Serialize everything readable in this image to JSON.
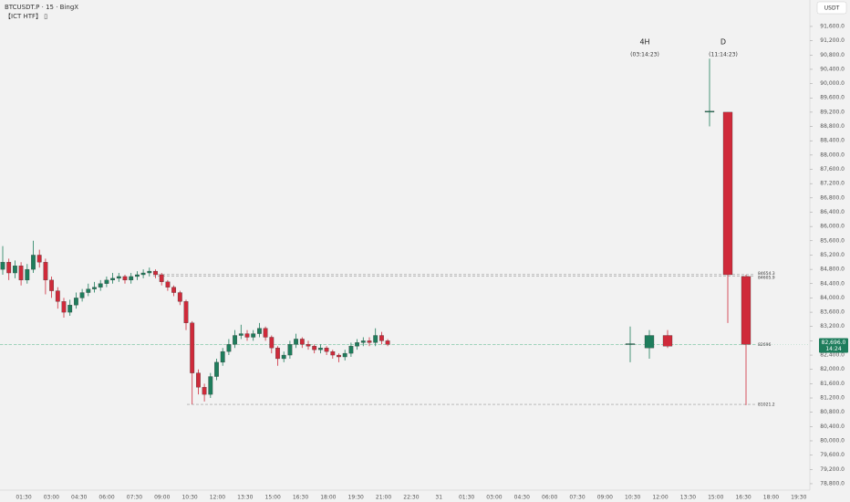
{
  "chart_data": {
    "type": "candlestick",
    "title": "BTCUSDT.P · 15 · BingX",
    "subtitle": "【ICT HTF】 ▯",
    "unit": "USDT",
    "ylim": [
      78620,
      92340
    ],
    "yticks": [
      {
        "value": 78800,
        "label": "78,800.0"
      },
      {
        "value": 79200,
        "label": "79,200.0"
      },
      {
        "value": 79600,
        "label": "79,600.0"
      },
      {
        "value": 80000,
        "label": "80,000.0"
      },
      {
        "value": 80400,
        "label": "80,400.0"
      },
      {
        "value": 80800,
        "label": "80,800.0"
      },
      {
        "value": 81200,
        "label": "81,200.0"
      },
      {
        "value": 81600,
        "label": "81,600.0"
      },
      {
        "value": 82000,
        "label": "82,000.0"
      },
      {
        "value": 82400,
        "label": "82,400.0"
      },
      {
        "value": 82800,
        "label": "82,800.0"
      },
      {
        "value": 83200,
        "label": "83,200.0"
      },
      {
        "value": 83600,
        "label": "83,600.0"
      },
      {
        "value": 84000,
        "label": "84,000.0"
      },
      {
        "value": 84400,
        "label": "84,400.0"
      },
      {
        "value": 84800,
        "label": "84,800.0"
      },
      {
        "value": 85200,
        "label": "85,200.0"
      },
      {
        "value": 85600,
        "label": "85,600.0"
      },
      {
        "value": 86000,
        "label": "86,000.0"
      },
      {
        "value": 86400,
        "label": "86,400.0"
      },
      {
        "value": 86800,
        "label": "86,800.0"
      },
      {
        "value": 87200,
        "label": "87,200.0"
      },
      {
        "value": 87600,
        "label": "87,600.0"
      },
      {
        "value": 88000,
        "label": "88,000.0"
      },
      {
        "value": 88400,
        "label": "88,400.0"
      },
      {
        "value": 88800,
        "label": "88,800.0"
      },
      {
        "value": 89200,
        "label": "89,200.0"
      },
      {
        "value": 89600,
        "label": "89,600.0"
      },
      {
        "value": 90000,
        "label": "90,000.0"
      },
      {
        "value": 90400,
        "label": "90,400.0"
      },
      {
        "value": 90800,
        "label": "90,800.0"
      },
      {
        "value": 91200,
        "label": "91,200.0"
      },
      {
        "value": 91600,
        "label": "91,600.0"
      }
    ],
    "categories": [
      "01:30",
      "03:00",
      "04:30",
      "06:00",
      "07:30",
      "09:00",
      "10:30",
      "12:00",
      "13:30",
      "15:00",
      "16:30",
      "18:00",
      "19:30",
      "21:00",
      "22:30",
      "31",
      "01:30",
      "03:00",
      "04:30",
      "06:00",
      "07:30",
      "09:00",
      "10:30",
      "12:00",
      "13:30",
      "15:00",
      "16:30",
      "18:00",
      "19:30"
    ],
    "up_color": "#1e7d5c",
    "down_color": "#cf2a3a",
    "candles": {
      "open": [
        84800,
        85000,
        84700,
        84900,
        84500,
        84800,
        85200,
        85000,
        84500,
        84200,
        83900,
        83600,
        83800,
        84000,
        84150,
        84250,
        84300,
        84400,
        84500,
        84550,
        84600,
        84500,
        84600,
        84650,
        84700,
        84750,
        84650,
        84450,
        84300,
        84150,
        83900,
        83300,
        81900,
        81500,
        81300,
        81800,
        82200,
        82500,
        82700,
        82950,
        83000,
        82900,
        83000,
        83150,
        82900,
        82600,
        82300,
        82400,
        82700,
        82850,
        82700,
        82650,
        82550,
        82600,
        82500,
        82400,
        82350,
        82450,
        82650,
        82750,
        82800,
        82750,
        82950,
        82800
      ],
      "high": [
        85450,
        85100,
        85050,
        85000,
        84950,
        85600,
        85350,
        85100,
        84600,
        84300,
        84000,
        83950,
        84150,
        84250,
        84400,
        84450,
        84500,
        84600,
        84700,
        84700,
        84650,
        84700,
        84750,
        84800,
        84850,
        84800,
        84700,
        84500,
        84350,
        84200,
        83950,
        83350,
        82000,
        81600,
        81900,
        82300,
        82600,
        82850,
        83100,
        83250,
        83100,
        83100,
        83300,
        83200,
        82950,
        82650,
        82500,
        82800,
        83000,
        82900,
        82800,
        82700,
        82700,
        82650,
        82550,
        82450,
        82550,
        82750,
        82850,
        82900,
        82900,
        83150,
        83050,
        82850
      ],
      "low": [
        84650,
        84500,
        84550,
        84350,
        84400,
        84700,
        84850,
        84100,
        84000,
        83700,
        83450,
        83500,
        83700,
        83900,
        84050,
        84150,
        84200,
        84300,
        84400,
        84450,
        84400,
        84400,
        84500,
        84550,
        84600,
        84550,
        84350,
        84200,
        84050,
        83800,
        83100,
        81021.2,
        81300,
        81100,
        81200,
        81700,
        82100,
        82400,
        82600,
        82850,
        82800,
        82800,
        82900,
        82800,
        82450,
        82100,
        82200,
        82300,
        82600,
        82600,
        82550,
        82450,
        82450,
        82400,
        82300,
        82200,
        82250,
        82350,
        82550,
        82650,
        82650,
        82650,
        82700,
        82650
      ],
      "close": [
        85000,
        84700,
        84900,
        84500,
        84800,
        85200,
        85000,
        84500,
        84200,
        83900,
        83600,
        83800,
        84000,
        84150,
        84250,
        84300,
        84400,
        84500,
        84550,
        84600,
        84500,
        84600,
        84650,
        84700,
        84750,
        84650,
        84450,
        84300,
        84150,
        83900,
        83300,
        81900,
        81500,
        81300,
        81800,
        82200,
        82500,
        82700,
        82950,
        83000,
        82900,
        83000,
        83150,
        82900,
        82600,
        82300,
        82400,
        82700,
        82850,
        82700,
        82650,
        82550,
        82600,
        82500,
        82400,
        82350,
        82450,
        82650,
        82750,
        82800,
        82750,
        82950,
        82800,
        82700
      ]
    },
    "htf": [
      {
        "label": "4H",
        "countdown": "(03:14:23)",
        "candles": {
          "open": [
            82700,
            82600,
            82950
          ],
          "high": [
            83200,
            83100,
            83100
          ],
          "low": [
            82200,
            82300,
            82600
          ],
          "close": [
            82720,
            82950,
            82650
          ]
        }
      },
      {
        "label": "D",
        "countdown": "(11:14:23)",
        "candles": {
          "open": [
            89200,
            89200,
            84600
          ],
          "high": [
            90700,
            89200,
            84650
          ],
          "low": [
            88800,
            83300,
            81000
          ],
          "close": [
            89230,
            84650,
            82700
          ]
        }
      }
    ],
    "levels": [
      {
        "value": 84654.3,
        "label": "84654.3"
      },
      {
        "value": 84605.9,
        "label": "84605.9"
      },
      {
        "value": 82696,
        "label": "82696"
      },
      {
        "value": 81021.2,
        "label": "81021.2"
      }
    ],
    "current_price": {
      "value": 82696.0,
      "label": "82,696.0",
      "timer": "14:24"
    }
  }
}
